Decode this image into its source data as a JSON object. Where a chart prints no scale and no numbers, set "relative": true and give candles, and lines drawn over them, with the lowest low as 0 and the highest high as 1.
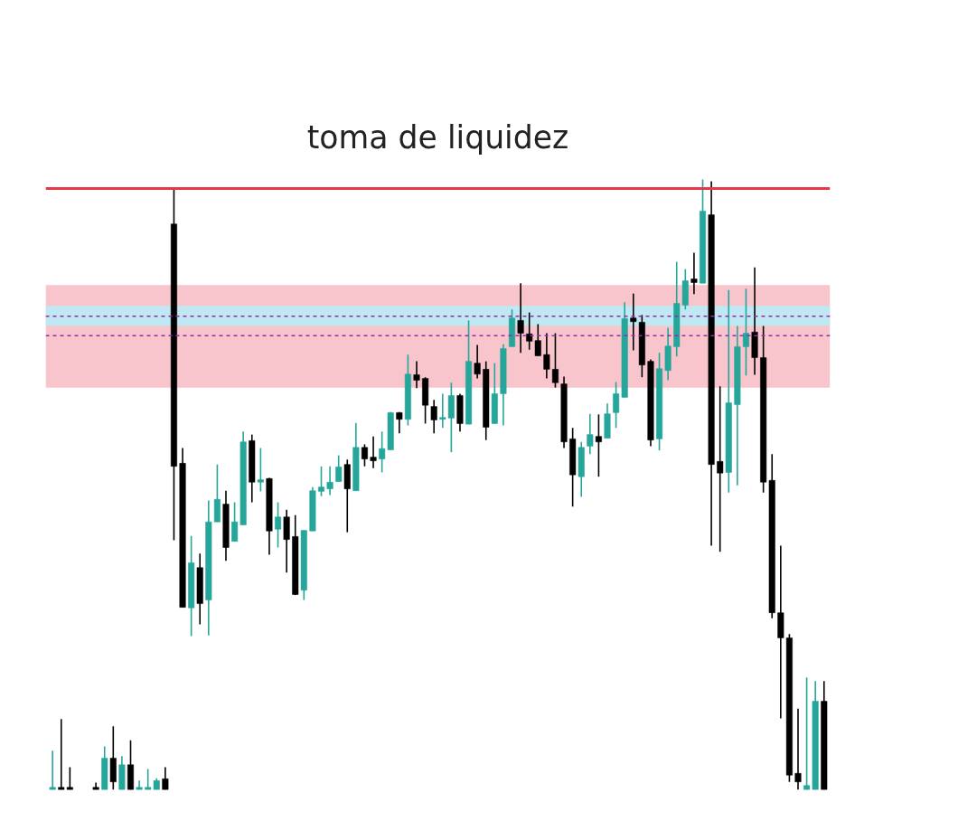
{
  "chart_data": {
    "type": "candlestick",
    "relative": true,
    "title": "toma de liquidez",
    "tick_labels": false,
    "grid": false,
    "categories": [
      null,
      null,
      null,
      null,
      null,
      null,
      null,
      null,
      null,
      null,
      null,
      null,
      null,
      null,
      null,
      null,
      null,
      null,
      null,
      null,
      null,
      null,
      null,
      null,
      null,
      null,
      null,
      null,
      null,
      null,
      null,
      null,
      null,
      null,
      null,
      null,
      null,
      null,
      null,
      null,
      null,
      null,
      null,
      null,
      null,
      null,
      null,
      null,
      null,
      null,
      null,
      null,
      null,
      null,
      null,
      null,
      null,
      null,
      null,
      null,
      null,
      null,
      null,
      null,
      null,
      null,
      null,
      null,
      null,
      null,
      null,
      null,
      null,
      null,
      null,
      null,
      null,
      null,
      null,
      null,
      null,
      null,
      null,
      null,
      null,
      null,
      null,
      null,
      null,
      null
    ],
    "ohlc": [
      [
        0,
        0.064,
        0,
        0.003
      ],
      [
        0.003,
        0.116,
        0,
        0
      ],
      [
        0.003,
        0.037,
        0,
        0
      ],
      null,
      null,
      [
        0.003,
        0.012,
        0,
        0
      ],
      [
        0,
        0.071,
        0,
        0.052
      ],
      [
        0.052,
        0.104,
        0,
        0.013
      ],
      [
        0,
        0.055,
        0,
        0.041
      ],
      [
        0.041,
        0.081,
        0,
        0
      ],
      [
        0,
        0.015,
        0,
        0.003
      ],
      [
        0,
        0.034,
        0,
        0.003
      ],
      [
        0,
        0.019,
        0,
        0.015
      ],
      [
        0.018,
        0.037,
        0,
        0
      ],
      [
        0.927,
        0.985,
        0.409,
        0.53
      ],
      [
        0.535,
        0.56,
        0.299,
        0.299
      ],
      [
        0.298,
        0.416,
        0.252,
        0.372
      ],
      [
        0.364,
        0.387,
        0.271,
        0.305
      ],
      [
        0.311,
        0.474,
        0.253,
        0.439
      ],
      [
        0.439,
        0.533,
        0.439,
        0.476
      ],
      [
        0.468,
        0.49,
        0.375,
        0.397
      ],
      [
        0.407,
        0.471,
        0.407,
        0.439
      ],
      [
        0.434,
        0.587,
        0.434,
        0.57
      ],
      [
        0.572,
        0.582,
        0.471,
        0.504
      ],
      [
        0.504,
        0.56,
        0.489,
        0.505
      ],
      [
        0.51,
        0.511,
        0.385,
        0.424
      ],
      [
        0.427,
        0.471,
        0.397,
        0.447
      ],
      [
        0.447,
        0.459,
        0.356,
        0.41
      ],
      [
        0.415,
        0.45,
        0.319,
        0.32
      ],
      [
        0.327,
        0.425,
        0.311,
        0.425
      ],
      [
        0.424,
        0.496,
        0.424,
        0.49
      ],
      [
        0.489,
        0.53,
        0.481,
        0.496
      ],
      [
        0.493,
        0.53,
        0.483,
        0.504
      ],
      [
        0.505,
        0.548,
        0.505,
        0.529
      ],
      [
        0.533,
        0.541,
        0.422,
        0.493
      ],
      [
        0.49,
        0.601,
        0.49,
        0.561
      ],
      [
        0.561,
        0.566,
        0.53,
        0.542
      ],
      [
        0.545,
        0.579,
        0.527,
        0.539
      ],
      [
        0.542,
        0.587,
        0.52,
        0.559
      ],
      [
        0.557,
        0.619,
        0.557,
        0.618
      ],
      [
        0.618,
        0.619,
        0.584,
        0.607
      ],
      [
        0.607,
        0.713,
        0.597,
        0.681
      ],
      [
        0.68,
        0.702,
        0.658,
        0.671
      ],
      [
        0.674,
        0.676,
        0.6,
        0.63
      ],
      [
        0.628,
        0.639,
        0.584,
        0.606
      ],
      [
        0.607,
        0.649,
        0.593,
        0.61
      ],
      [
        0.609,
        0.667,
        0.553,
        0.646
      ],
      [
        0.646,
        0.649,
        0.587,
        0.6
      ],
      [
        0.599,
        0.769,
        0.599,
        0.702
      ],
      [
        0.699,
        0.729,
        0.674,
        0.681
      ],
      [
        0.689,
        0.702,
        0.573,
        0.594
      ],
      [
        0.6,
        0.699,
        0.6,
        0.649
      ],
      [
        0.649,
        0.73,
        0.597,
        0.723
      ],
      [
        0.726,
        0.787,
        0.726,
        0.773
      ],
      [
        0.769,
        0.83,
        0.716,
        0.748
      ],
      [
        0.747,
        0.782,
        0.721,
        0.735
      ],
      [
        0.736,
        0.763,
        0.711,
        0.711
      ],
      [
        0.713,
        0.748,
        0.674,
        0.689
      ],
      [
        0.689,
        0.748,
        0.659,
        0.667
      ],
      [
        0.665,
        0.677,
        0.56,
        0.57
      ],
      [
        0.575,
        0.593,
        0.464,
        0.516
      ],
      [
        0.513,
        0.57,
        0.48,
        0.561
      ],
      [
        0.563,
        0.616,
        0.55,
        0.582
      ],
      [
        0.579,
        0.615,
        0.513,
        0.57
      ],
      [
        0.576,
        0.633,
        0.576,
        0.616
      ],
      [
        0.618,
        0.668,
        0.593,
        0.649
      ],
      [
        0.643,
        0.799,
        0.643,
        0.772
      ],
      [
        0.773,
        0.813,
        0.72,
        0.767
      ],
      [
        0.766,
        0.778,
        0.676,
        0.696
      ],
      [
        0.702,
        0.705,
        0.563,
        0.573
      ],
      [
        0.575,
        0.716,
        0.556,
        0.69
      ],
      [
        0.687,
        0.757,
        0.671,
        0.727
      ],
      [
        0.726,
        0.865,
        0.71,
        0.797
      ],
      [
        0.794,
        0.853,
        0.787,
        0.834
      ],
      [
        0.837,
        0.88,
        0.812,
        0.831
      ],
      [
        0.83,
        1,
        0.83,
        0.948
      ],
      [
        0.942,
        0.997,
        0.4,
        0.533
      ],
      [
        0.538,
        0.661,
        0.39,
        0.519
      ],
      [
        0.52,
        0.819,
        0.487,
        0.634
      ],
      [
        0.631,
        0.76,
        0.499,
        0.726
      ],
      [
        0.726,
        0.821,
        0.679,
        0.748
      ],
      [
        0.75,
        0.856,
        0.68,
        0.708
      ],
      [
        0.708,
        0.76,
        0.487,
        0.504
      ],
      [
        0.507,
        0.55,
        0.281,
        0.29
      ],
      [
        0.29,
        0.4,
        0.117,
        0.249
      ],
      [
        0.249,
        0.255,
        0.013,
        0.024
      ],
      [
        0.027,
        0.133,
        0,
        0.013
      ],
      [
        0,
        0.184,
        0,
        0.007
      ],
      [
        0,
        0.178,
        0,
        0.145
      ],
      [
        0.145,
        0.178,
        0,
        0
      ]
    ],
    "colors": [
      "#26a69a",
      "#000000",
      "#000000",
      null,
      null,
      "#000000",
      "#26a69a",
      "#000000",
      "#26a69a",
      "#000000",
      "#26a69a",
      "#26a69a",
      "#26a69a",
      "#000000",
      "#000000",
      "#000000",
      "#26a69a",
      "#000000",
      "#26a69a",
      "#26a69a",
      "#000000",
      "#26a69a",
      "#26a69a",
      "#000000",
      "#26a69a",
      "#000000",
      "#26a69a",
      "#000000",
      "#000000",
      "#26a69a",
      "#26a69a",
      "#26a69a",
      "#26a69a",
      "#26a69a",
      "#000000",
      "#26a69a",
      "#000000",
      "#000000",
      "#26a69a",
      "#26a69a",
      "#000000",
      "#26a69a",
      "#000000",
      "#000000",
      "#000000",
      "#26a69a",
      "#26a69a",
      "#000000",
      "#26a69a",
      "#000000",
      "#000000",
      "#26a69a",
      "#26a69a",
      "#26a69a",
      "#000000",
      "#000000",
      "#000000",
      "#000000",
      "#000000",
      "#000000",
      "#000000",
      "#26a69a",
      "#26a69a",
      "#000000",
      "#26a69a",
      "#26a69a",
      "#26a69a",
      "#000000",
      "#000000",
      "#000000",
      "#26a69a",
      "#26a69a",
      "#26a69a",
      "#26a69a",
      "#000000",
      "#26a69a",
      "#000000",
      "#000000",
      "#26a69a",
      "#26a69a",
      "#26a69a",
      "#000000",
      "#000000",
      "#000000",
      "#000000",
      "#000000",
      "#000000",
      "#26a69a",
      "#26a69a",
      "#000000"
    ],
    "ref_lines": [
      {
        "axis": "y",
        "value": 0.985,
        "color": "#e53945",
        "line_style": "solid"
      },
      {
        "axis": "y",
        "value": 0.776,
        "color": "#9c27b0",
        "line_style": "dashed"
      },
      {
        "axis": "y",
        "value": 0.744,
        "color": "#9c27b0",
        "line_style": "dashed"
      }
    ],
    "bands": [
      {
        "axis": "y",
        "from": 0.659,
        "to": 0.827,
        "color": "#f7c5cb"
      },
      {
        "axis": "y",
        "from": 0.76,
        "to": 0.793,
        "color": "#bfe8f2"
      }
    ]
  }
}
